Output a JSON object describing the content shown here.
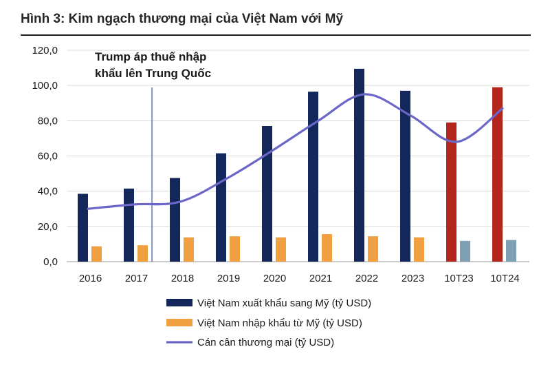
{
  "figure": {
    "title": "Hình 3: Kim ngạch thương mại của Việt Nam với Mỹ"
  },
  "chart_data": {
    "type": "bar",
    "categories": [
      "2016",
      "2017",
      "2018",
      "2019",
      "2020",
      "2021",
      "2022",
      "2023",
      "10T23",
      "10T24"
    ],
    "ylim": [
      0,
      120
    ],
    "yticks": [
      "0,0",
      "20,0",
      "40,0",
      "60,0",
      "80,0",
      "100,0",
      "120,0"
    ],
    "ytick_values": [
      0,
      20,
      40,
      60,
      80,
      100,
      120
    ],
    "grid": true,
    "series": [
      {
        "name": "Việt Nam xuất khẩu sang Mỹ (tỷ USD)",
        "kind": "bar",
        "color": "#14275a",
        "highlight_color": "#b3261e",
        "highlight_categories": [
          "10T23",
          "10T24"
        ],
        "values": [
          38.5,
          41.5,
          47.5,
          61.5,
          77,
          96.5,
          109.5,
          97,
          79,
          99
        ]
      },
      {
        "name": "Việt Nam nhập khẩu từ Mỹ (tỷ USD)",
        "kind": "bar",
        "color": "#f0a040",
        "highlight_color": "#7f9fb2",
        "highlight_categories": [
          "10T23",
          "10T24"
        ],
        "values": [
          8.7,
          9.3,
          13.8,
          14.4,
          13.8,
          15.6,
          14.4,
          13.8,
          11.8,
          12.3
        ]
      },
      {
        "name": "Cán cân thương mại (tỷ USD)",
        "kind": "line",
        "color": "#6b67c9",
        "values": [
          30,
          32.5,
          34,
          47,
          63,
          80,
          95,
          83,
          68,
          87
        ]
      }
    ],
    "annotation": {
      "lines": [
        "Trump áp thuế nhập",
        "khẩu lên Trung Quốc"
      ],
      "after_category": "2017"
    },
    "legend_position": "bottom-center"
  }
}
